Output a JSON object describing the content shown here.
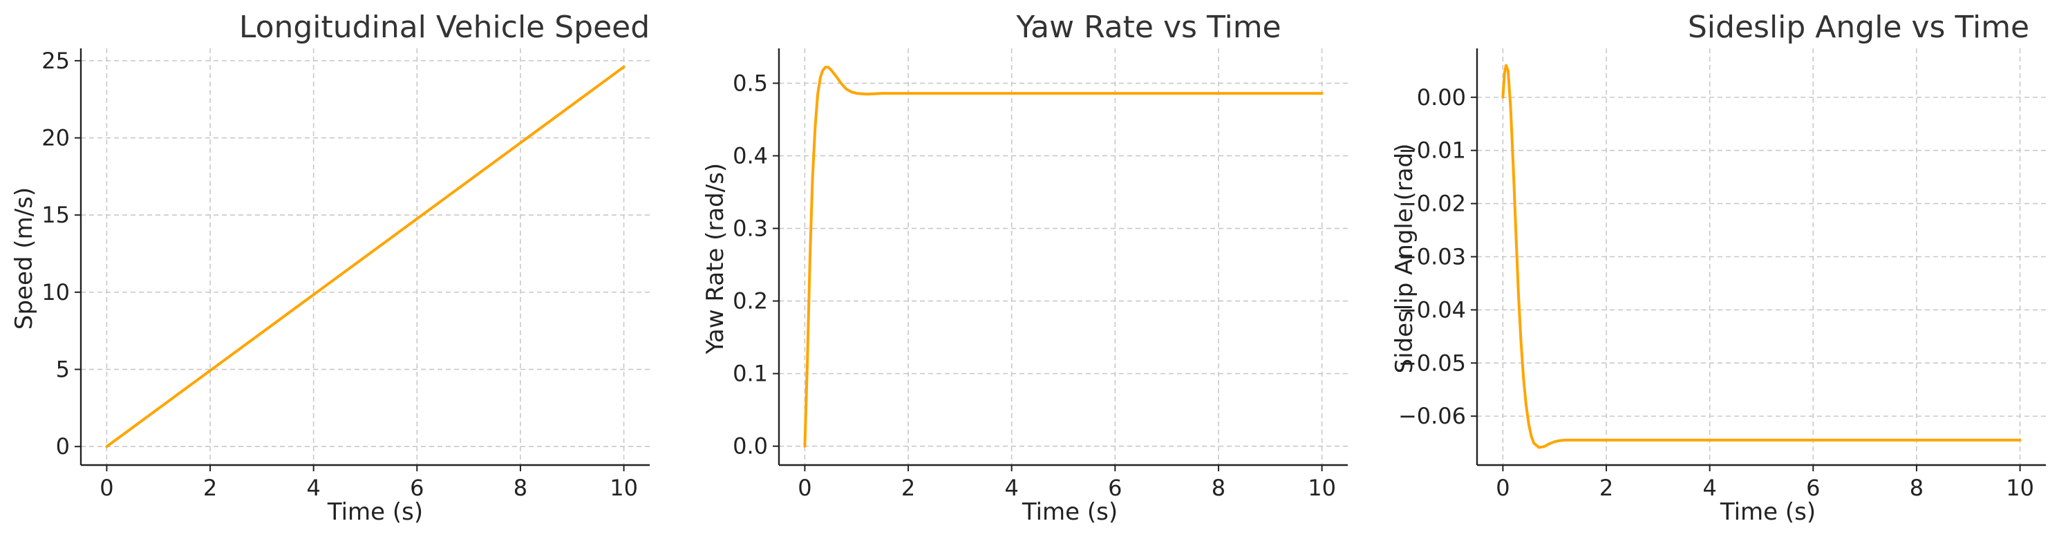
{
  "chart_data": [
    {
      "type": "line",
      "title": "Longitudinal Vehicle Speed",
      "xlabel": "Time (s)",
      "ylabel": "Speed (m/s)",
      "xlim": [
        -0.5,
        10.5
      ],
      "ylim": [
        -1.2,
        25.8
      ],
      "xticks": [
        0,
        2,
        4,
        6,
        8,
        10
      ],
      "xtick_labels": [
        "0",
        "2",
        "4",
        "6",
        "8",
        "10"
      ],
      "yticks": [
        0,
        5,
        10,
        15,
        20,
        25
      ],
      "ytick_labels": [
        "0",
        "5",
        "10",
        "15",
        "20",
        "25"
      ],
      "grid": true,
      "color": "#FFA500",
      "series": [
        {
          "x": [
            0,
            2,
            4,
            6,
            8,
            10
          ],
          "y": [
            0,
            4.92,
            9.84,
            14.76,
            19.68,
            24.6
          ]
        }
      ]
    },
    {
      "type": "line",
      "title": "Yaw Rate vs Time",
      "xlabel": "Time (s)",
      "ylabel": "Yaw Rate (rad/s)",
      "xlim": [
        -0.5,
        10.5
      ],
      "ylim": [
        -0.026,
        0.548
      ],
      "xticks": [
        0,
        2,
        4,
        6,
        8,
        10
      ],
      "xtick_labels": [
        "0",
        "2",
        "4",
        "6",
        "8",
        "10"
      ],
      "yticks": [
        0.0,
        0.1,
        0.2,
        0.3,
        0.4,
        0.5
      ],
      "ytick_labels": [
        "0.0",
        "0.1",
        "0.2",
        "0.3",
        "0.4",
        "0.5"
      ],
      "grid": true,
      "color": "#FFA500",
      "series": [
        {
          "x": [
            0,
            0.05,
            0.1,
            0.15,
            0.2,
            0.25,
            0.3,
            0.35,
            0.4,
            0.45,
            0.5,
            0.6,
            0.7,
            0.8,
            0.9,
            1.0,
            1.2,
            1.5,
            2.0,
            3,
            4,
            5,
            6,
            7,
            8,
            9,
            10
          ],
          "y": [
            0,
            0.12,
            0.26,
            0.37,
            0.44,
            0.485,
            0.508,
            0.518,
            0.522,
            0.522,
            0.519,
            0.51,
            0.5,
            0.492,
            0.488,
            0.486,
            0.485,
            0.486,
            0.486,
            0.486,
            0.486,
            0.486,
            0.486,
            0.486,
            0.486,
            0.486,
            0.486
          ]
        }
      ]
    },
    {
      "type": "line",
      "title": "Sideslip Angle vs Time",
      "xlabel": "Time (s)",
      "ylabel": "Sideslip Angle (rad)",
      "xlim": [
        -0.5,
        10.5
      ],
      "ylim": [
        -0.0692,
        0.0092
      ],
      "xticks": [
        0,
        2,
        4,
        6,
        8,
        10
      ],
      "xtick_labels": [
        "0",
        "2",
        "4",
        "6",
        "8",
        "10"
      ],
      "yticks": [
        0.0,
        -0.01,
        -0.02,
        -0.03,
        -0.04,
        -0.05,
        -0.06
      ],
      "ytick_labels": [
        "0.00",
        "−0.01",
        "−0.02",
        "−0.03",
        "−0.04",
        "−0.05",
        "−0.06"
      ],
      "grid": true,
      "color": "#FFA500",
      "series": [
        {
          "x": [
            0,
            0.03,
            0.06,
            0.1,
            0.15,
            0.2,
            0.25,
            0.3,
            0.35,
            0.4,
            0.45,
            0.5,
            0.55,
            0.6,
            0.7,
            0.8,
            0.9,
            1.0,
            1.1,
            1.2,
            1.4,
            1.6,
            1.8,
            2.0,
            3,
            4,
            5,
            6,
            7,
            8,
            9,
            10
          ],
          "y": [
            0,
            0.0045,
            0.006,
            0.005,
            -0.002,
            -0.013,
            -0.025,
            -0.037,
            -0.046,
            -0.053,
            -0.058,
            -0.0615,
            -0.0638,
            -0.0651,
            -0.0659,
            -0.0657,
            -0.0652,
            -0.0648,
            -0.0646,
            -0.0645,
            -0.0645,
            -0.0645,
            -0.0645,
            -0.0645,
            -0.0645,
            -0.0645,
            -0.0645,
            -0.0645,
            -0.0645,
            -0.0645,
            -0.0645,
            -0.0645
          ]
        }
      ]
    }
  ]
}
